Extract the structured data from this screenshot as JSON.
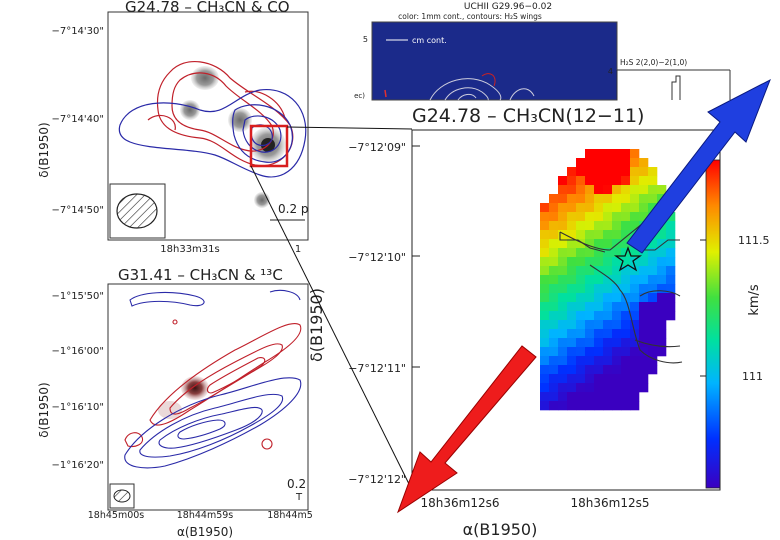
{
  "panel_tl": {
    "title": "G24.78 – CH₃CN & CO",
    "ylabel": "δ(B1950)",
    "yticks": [
      "−7°14'30\"",
      "−7°14'40\"",
      "−7°14'50\""
    ],
    "xtick": "18h33m31s",
    "xtick_right": "1",
    "scalebar": "0.2 p"
  },
  "panel_bl": {
    "title": "G31.41 – CH₃CN & ¹³C",
    "ylabel": "δ(B1950)",
    "yticks": [
      "−1°15'50\"",
      "−1°16'00\"",
      "−1°16'10\"",
      "−1°16'20\""
    ],
    "xticks": [
      "18h45m00s",
      "18h44m59s",
      "18h44m5"
    ],
    "xlabel": "α(B1950)",
    "scalebar": "0.2",
    "scalebar2": "T"
  },
  "panel_tc": {
    "title": "UCHII G29.96−0.02",
    "subtitle": "color: 1mm cont., contours: H₂S wings",
    "legend": "cm cont.",
    "ytick": "5",
    "ylabel_frag": "ec)"
  },
  "panel_tr": {
    "label": "H₂S 2(2,0)−2(1,0)",
    "ytick": "4"
  },
  "panel_main": {
    "title": "G24.78 – CH₃CN(12−11)",
    "ylabel": "δ(B1950)",
    "yticks": [
      "−7°12'09\"",
      "−7°12'10\"",
      "−7°12'11\"",
      "−7°12'12\""
    ],
    "xticks": [
      "18h36m12s6",
      "18h36m12s5"
    ],
    "xlabel": "α(B1950)",
    "colorbar_label": "km/s",
    "colorbar_ticks": [
      "111.5",
      "111"
    ]
  },
  "colors": {
    "red_contour": "#c0202a",
    "blue_contour": "#2a2aa8",
    "arrow_blue": "#1f3fe0",
    "arrow_red": "#ee1c1c",
    "box_red": "#d81e1e"
  }
}
